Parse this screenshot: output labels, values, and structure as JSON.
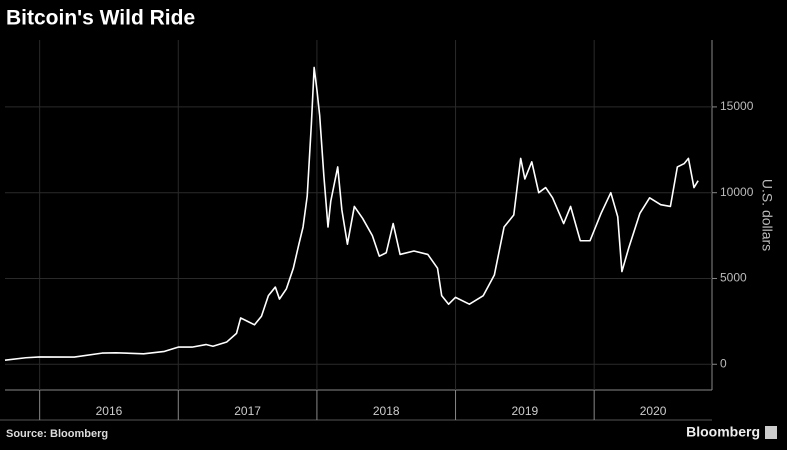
{
  "chart_data": {
    "type": "line",
    "title": "Bitcoin's Wild Ride",
    "y_label": "U.S. dollars",
    "source": "Source: Bloomberg",
    "brand": "Bloomberg",
    "color": "#ffffff",
    "grid": true,
    "x": [
      2015.75,
      2015.9,
      2016.0,
      2016.25,
      2016.45,
      2016.55,
      2016.75,
      2016.9,
      2017.0,
      2017.1,
      2017.2,
      2017.25,
      2017.35,
      2017.42,
      2017.45,
      2017.5,
      2017.55,
      2017.6,
      2017.65,
      2017.7,
      2017.73,
      2017.78,
      2017.83,
      2017.87,
      2017.9,
      2017.93,
      2017.96,
      2017.98,
      2018.0,
      2018.02,
      2018.05,
      2018.08,
      2018.1,
      2018.15,
      2018.18,
      2018.22,
      2018.27,
      2018.33,
      2018.4,
      2018.45,
      2018.5,
      2018.55,
      2018.6,
      2018.7,
      2018.8,
      2018.87,
      2018.9,
      2018.95,
      2019.0,
      2019.1,
      2019.2,
      2019.28,
      2019.35,
      2019.42,
      2019.47,
      2019.5,
      2019.55,
      2019.6,
      2019.65,
      2019.7,
      2019.78,
      2019.83,
      2019.9,
      2019.97,
      2020.05,
      2020.12,
      2020.17,
      2020.2,
      2020.25,
      2020.33,
      2020.4,
      2020.48,
      2020.55,
      2020.6,
      2020.65,
      2020.68,
      2020.72,
      2020.75
    ],
    "values": [
      240,
      380,
      430,
      420,
      650,
      670,
      610,
      750,
      1000,
      1000,
      1150,
      1050,
      1300,
      1800,
      2700,
      2500,
      2300,
      2800,
      4000,
      4500,
      3800,
      4400,
      5600,
      7000,
      8000,
      9800,
      14000,
      17300,
      16000,
      14500,
      11000,
      8000,
      9500,
      11500,
      9000,
      7000,
      9200,
      8500,
      7500,
      6300,
      6500,
      8200,
      6400,
      6600,
      6400,
      5600,
      4000,
      3500,
      3900,
      3500,
      4000,
      5200,
      8000,
      8700,
      12000,
      10800,
      11800,
      10000,
      10300,
      9700,
      8200,
      9200,
      7200,
      7200,
      8800,
      10000,
      8600,
      5400,
      6800,
      8800,
      9700,
      9300,
      9200,
      11500,
      11700,
      12000,
      10300,
      10700
    ],
    "xlim": [
      2015.75,
      2020.85
    ],
    "xticks": [
      {
        "value": 2016,
        "label": "2016"
      },
      {
        "value": 2017,
        "label": "2017"
      },
      {
        "value": 2018,
        "label": "2018"
      },
      {
        "value": 2019,
        "label": "2019"
      },
      {
        "value": 2020,
        "label": "2020"
      }
    ],
    "ylim": [
      -1500,
      18900
    ],
    "yticks": [
      0,
      5000,
      10000,
      15000
    ]
  }
}
